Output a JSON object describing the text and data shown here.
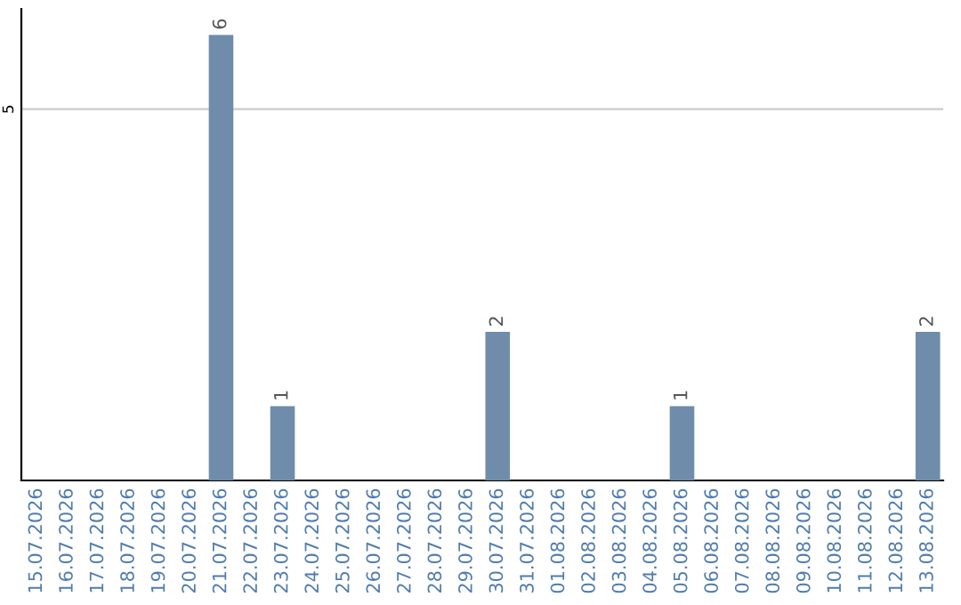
{
  "chart_data": {
    "type": "bar",
    "categories": [
      "15.07.2026",
      "16.07.2026",
      "17.07.2026",
      "18.07.2026",
      "19.07.2026",
      "20.07.2026",
      "21.07.2026",
      "22.07.2026",
      "23.07.2026",
      "24.07.2026",
      "25.07.2026",
      "26.07.2026",
      "27.07.2026",
      "28.07.2026",
      "29.07.2026",
      "30.07.2026",
      "31.07.2026",
      "01.08.2026",
      "02.08.2026",
      "03.08.2026",
      "04.08.2026",
      "05.08.2026",
      "06.08.2026",
      "07.08.2026",
      "08.08.2026",
      "09.08.2026",
      "10.08.2026",
      "11.08.2026",
      "12.08.2026",
      "13.08.2026"
    ],
    "values": [
      0,
      0,
      0,
      0,
      0,
      0,
      6,
      0,
      1,
      0,
      0,
      0,
      0,
      0,
      0,
      2,
      0,
      0,
      0,
      0,
      0,
      1,
      0,
      0,
      0,
      0,
      0,
      0,
      0,
      2
    ],
    "value_labels": [
      null,
      null,
      null,
      null,
      null,
      null,
      "6",
      null,
      "1",
      null,
      null,
      null,
      null,
      null,
      null,
      "2",
      null,
      null,
      null,
      null,
      null,
      "1",
      null,
      null,
      null,
      null,
      null,
      null,
      null,
      "2"
    ],
    "color": "#6f8dab",
    "ylim": [
      0,
      6.35
    ],
    "yticks": [
      5
    ],
    "grid": "y"
  }
}
